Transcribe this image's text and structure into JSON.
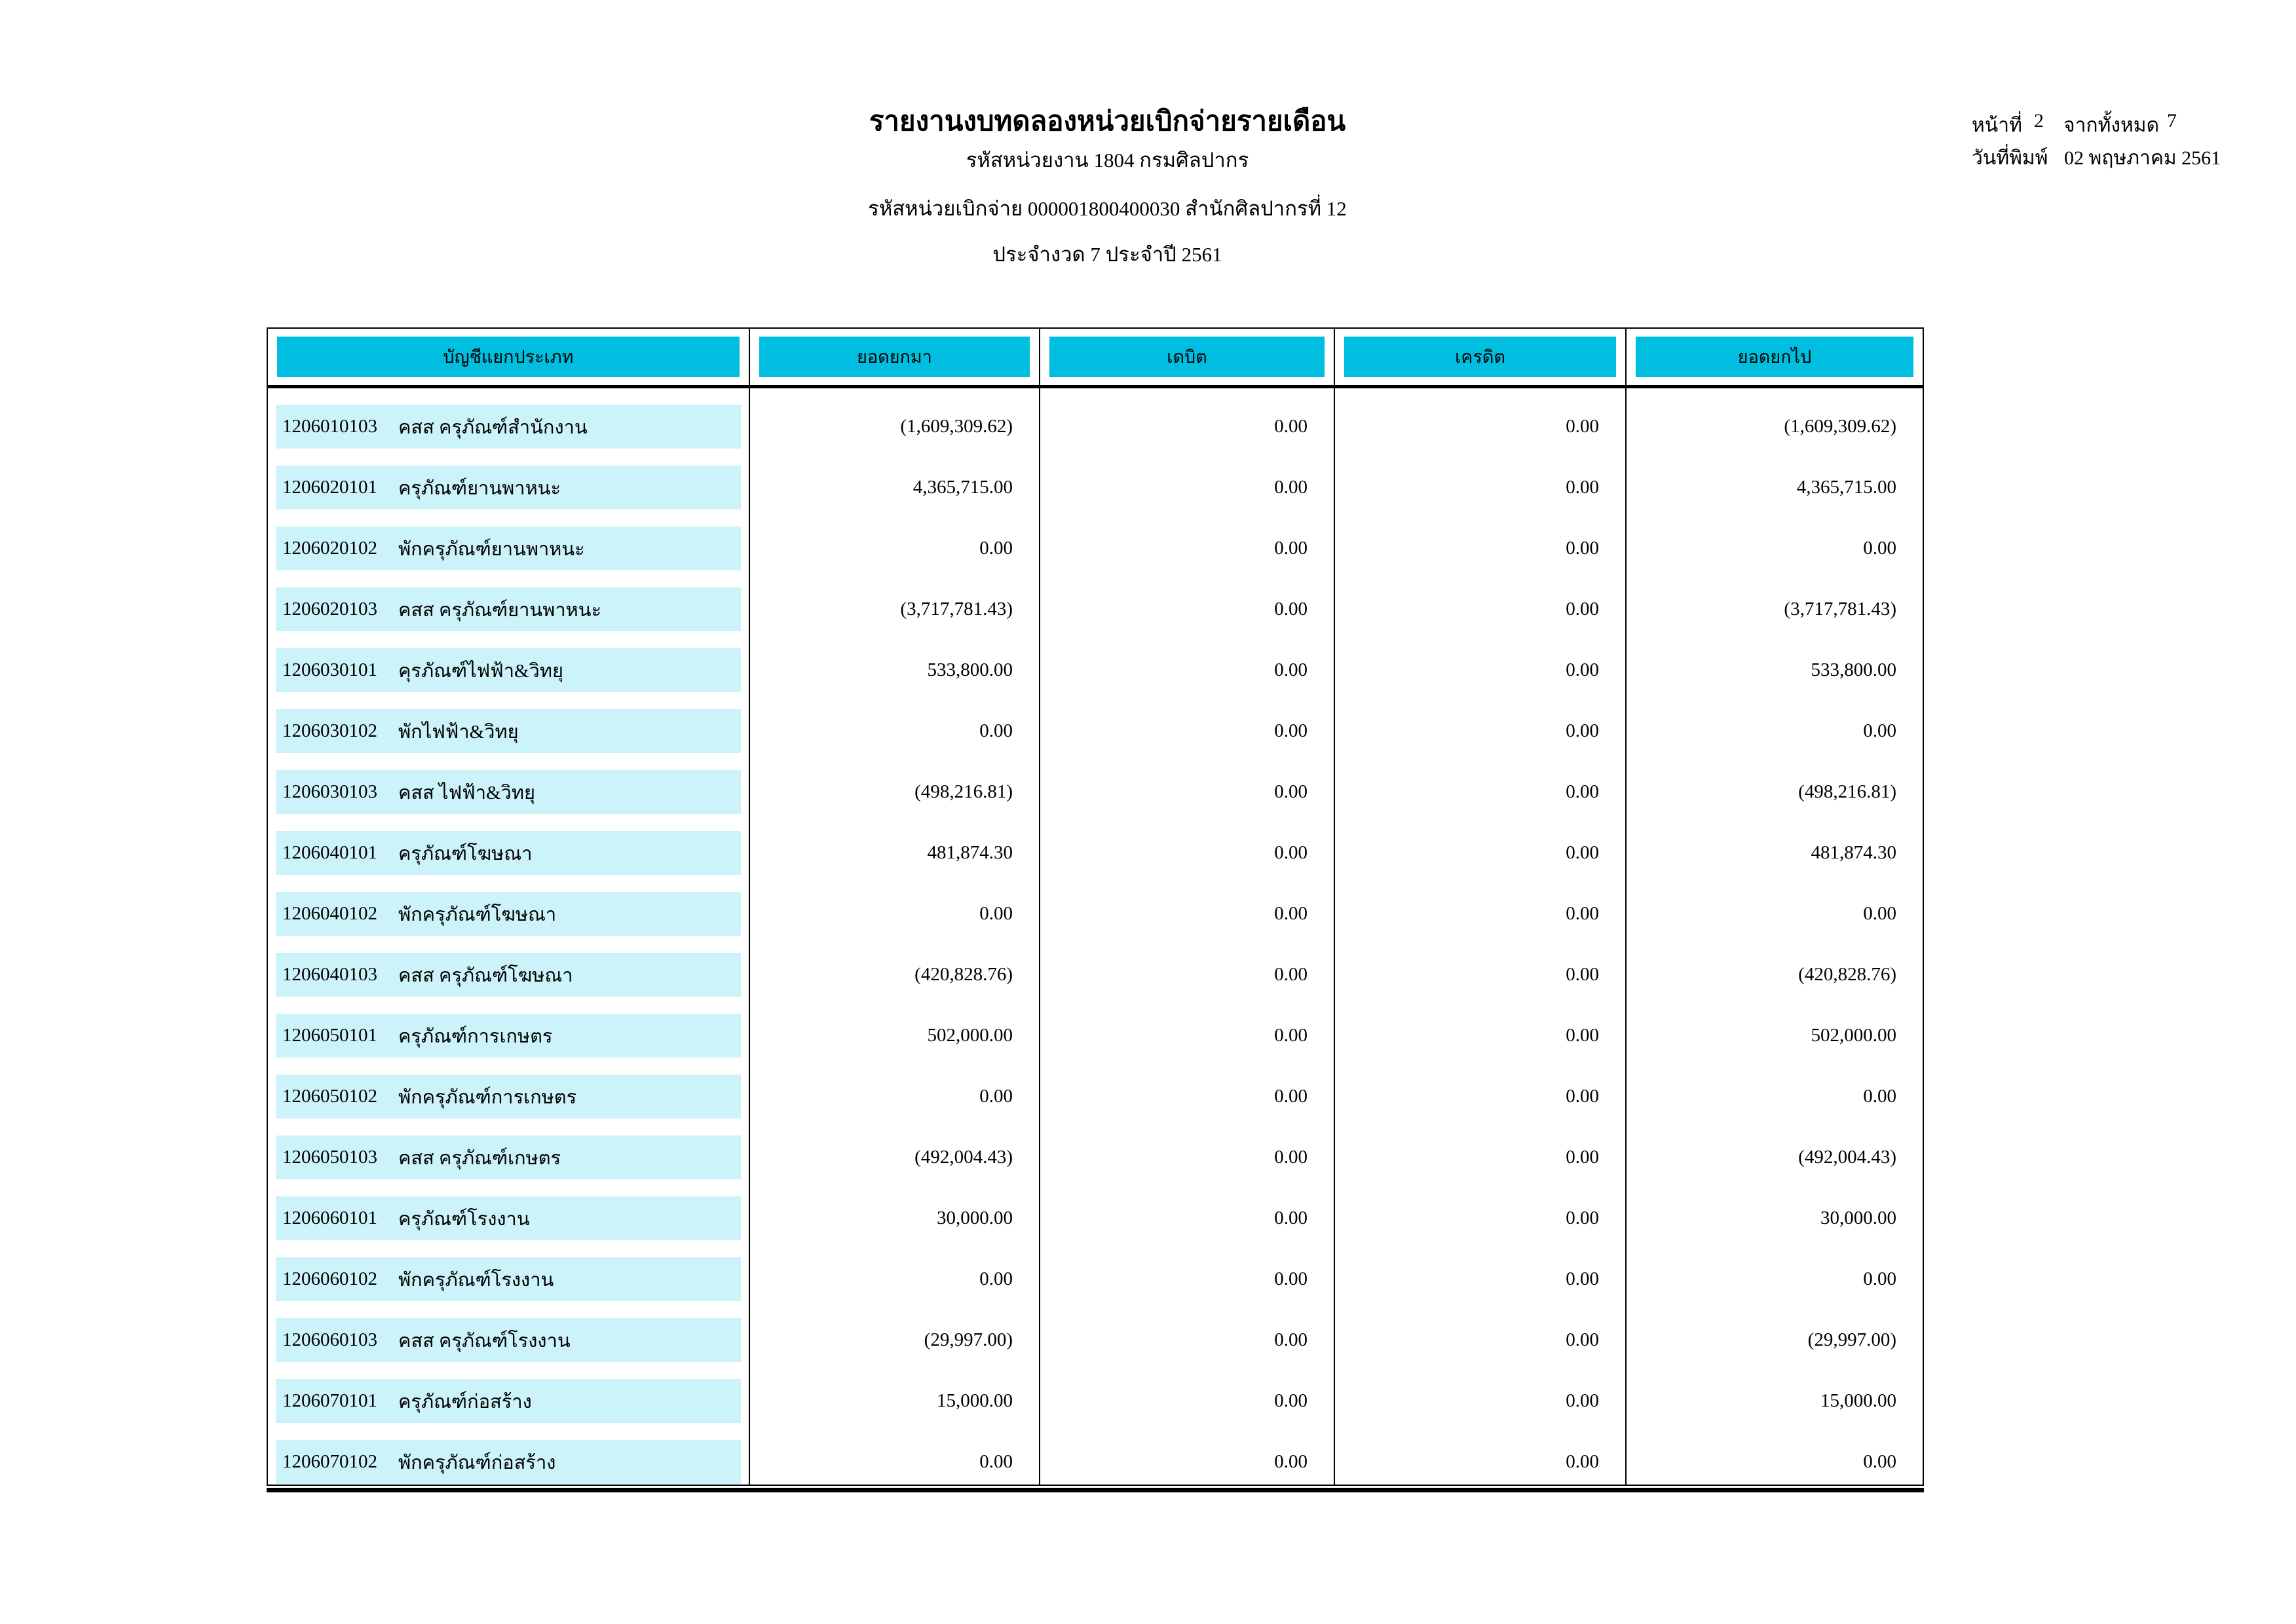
{
  "header": {
    "title": "รายงานงบทดลองหน่วยเบิกจ่ายรายเดือน",
    "agency_line": "รหัสหน่วยงาน 1804 กรมศิลปากร",
    "disbursement_line": "รหัสหน่วยเบิกจ่าย 000001800400030 สำนักศิลปากรที่ 12",
    "period_line": "ประจำงวด 7 ประจำปี 2561"
  },
  "page_info": {
    "page_label": "หน้าที่",
    "page_number": "2",
    "of_label": "จากทั้งหมด",
    "total_pages": "7",
    "print_date_label": "วันที่พิมพ์",
    "print_date": "02 พฤษภาคม 2561"
  },
  "colors": {
    "header_fill": "#00BEE0",
    "row_fill": "#CCF2FA"
  },
  "table": {
    "columns": [
      "บัญชีแยกประเภท",
      "ยอดยกมา",
      "เดบิต",
      "เครดิต",
      "ยอดยกไป"
    ],
    "rows": [
      {
        "code": "1206010103",
        "name": "คสส ครุภัณฑ์สำนักงาน",
        "brought_forward": "(1,609,309.62)",
        "debit": "0.00",
        "credit": "0.00",
        "carried_forward": "(1,609,309.62)"
      },
      {
        "code": "1206020101",
        "name": "ครุภัณฑ์ยานพาหนะ",
        "brought_forward": "4,365,715.00",
        "debit": "0.00",
        "credit": "0.00",
        "carried_forward": "4,365,715.00"
      },
      {
        "code": "1206020102",
        "name": "พักครุภัณฑ์ยานพาหนะ",
        "brought_forward": "0.00",
        "debit": "0.00",
        "credit": "0.00",
        "carried_forward": "0.00"
      },
      {
        "code": "1206020103",
        "name": "คสส ครุภัณฑ์ยานพาหนะ",
        "brought_forward": "(3,717,781.43)",
        "debit": "0.00",
        "credit": "0.00",
        "carried_forward": "(3,717,781.43)"
      },
      {
        "code": "1206030101",
        "name": "คุรภัณฑ์ไฟฟ้า&วิทยุ",
        "brought_forward": "533,800.00",
        "debit": "0.00",
        "credit": "0.00",
        "carried_forward": "533,800.00"
      },
      {
        "code": "1206030102",
        "name": "พักไฟฟ้า&วิทยุ",
        "brought_forward": "0.00",
        "debit": "0.00",
        "credit": "0.00",
        "carried_forward": "0.00"
      },
      {
        "code": "1206030103",
        "name": "คสส ไฟฟ้า&วิทยุ",
        "brought_forward": "(498,216.81)",
        "debit": "0.00",
        "credit": "0.00",
        "carried_forward": "(498,216.81)"
      },
      {
        "code": "1206040101",
        "name": "ครุภัณฑ์โฆษณา",
        "brought_forward": "481,874.30",
        "debit": "0.00",
        "credit": "0.00",
        "carried_forward": "481,874.30"
      },
      {
        "code": "1206040102",
        "name": "พักครุภัณฑ์โฆษณา",
        "brought_forward": "0.00",
        "debit": "0.00",
        "credit": "0.00",
        "carried_forward": "0.00"
      },
      {
        "code": "1206040103",
        "name": "คสส ครุภัณฑ์โฆษณา",
        "brought_forward": "(420,828.76)",
        "debit": "0.00",
        "credit": "0.00",
        "carried_forward": "(420,828.76)"
      },
      {
        "code": "1206050101",
        "name": "ครุภัณฑ์การเกษตร",
        "brought_forward": "502,000.00",
        "debit": "0.00",
        "credit": "0.00",
        "carried_forward": "502,000.00"
      },
      {
        "code": "1206050102",
        "name": "พักครุภัณฑ์การเกษตร",
        "brought_forward": "0.00",
        "debit": "0.00",
        "credit": "0.00",
        "carried_forward": "0.00"
      },
      {
        "code": "1206050103",
        "name": "คสส ครุภัณฑ์เกษตร",
        "brought_forward": "(492,004.43)",
        "debit": "0.00",
        "credit": "0.00",
        "carried_forward": "(492,004.43)"
      },
      {
        "code": "1206060101",
        "name": "ครุภัณฑ์โรงงาน",
        "brought_forward": "30,000.00",
        "debit": "0.00",
        "credit": "0.00",
        "carried_forward": "30,000.00"
      },
      {
        "code": "1206060102",
        "name": "พักครุภัณฑ์โรงงาน",
        "brought_forward": "0.00",
        "debit": "0.00",
        "credit": "0.00",
        "carried_forward": "0.00"
      },
      {
        "code": "1206060103",
        "name": "คสส ครุภัณฑ์โรงงาน",
        "brought_forward": "(29,997.00)",
        "debit": "0.00",
        "credit": "0.00",
        "carried_forward": "(29,997.00)"
      },
      {
        "code": "1206070101",
        "name": "ครุภัณฑ์ก่อสร้าง",
        "brought_forward": "15,000.00",
        "debit": "0.00",
        "credit": "0.00",
        "carried_forward": "15,000.00"
      },
      {
        "code": "1206070102",
        "name": "พักครุภัณฑ์ก่อสร้าง",
        "brought_forward": "0.00",
        "debit": "0.00",
        "credit": "0.00",
        "carried_forward": "0.00"
      }
    ]
  }
}
